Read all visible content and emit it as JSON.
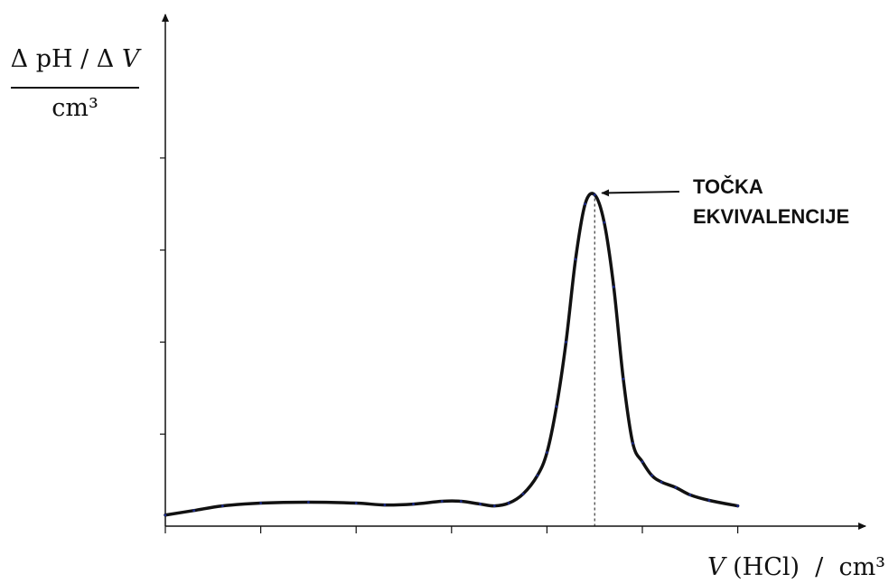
{
  "chart_data": {
    "type": "line",
    "ylabel_parts": {
      "numerator_prefix": "Δ pH / Δ ",
      "numerator_var": "V",
      "denominator": "cm³"
    },
    "xlabel_parts": {
      "var": "V",
      "rest": " (HCl)  /  cm³"
    },
    "annotation": {
      "line1": "TOČKA",
      "line2": "EKVIVALENCIJE",
      "target_x": 4.5
    },
    "xlim": [
      0,
      7.4
    ],
    "ylim": [
      0,
      5.7
    ],
    "x_ticks": [
      0,
      1,
      2,
      3,
      4,
      5,
      6
    ],
    "y_ticks": [
      1,
      2,
      3,
      4
    ],
    "grid": false,
    "series": [
      {
        "x": [
          0,
          0.3,
          0.6,
          1.0,
          1.5,
          2.0,
          2.3,
          2.6,
          2.9,
          3.1,
          3.3,
          3.45,
          3.6,
          3.75,
          3.9,
          4.0,
          4.1,
          4.2,
          4.3,
          4.4,
          4.5,
          4.6,
          4.7,
          4.8,
          4.9,
          5.0,
          5.1,
          5.2,
          5.35,
          5.5,
          5.7,
          6.0
        ],
        "y": [
          0.12,
          0.17,
          0.22,
          0.25,
          0.26,
          0.25,
          0.23,
          0.24,
          0.27,
          0.27,
          0.24,
          0.22,
          0.25,
          0.35,
          0.55,
          0.8,
          1.3,
          2.0,
          2.9,
          3.5,
          3.6,
          3.3,
          2.6,
          1.6,
          0.9,
          0.7,
          0.55,
          0.48,
          0.42,
          0.34,
          0.28,
          0.22
        ]
      }
    ]
  }
}
